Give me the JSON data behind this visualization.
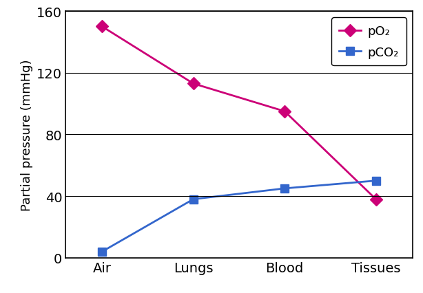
{
  "categories": [
    "Air",
    "Lungs",
    "Blood",
    "Tissues"
  ],
  "pO2": [
    150,
    113,
    95,
    38
  ],
  "pCO2": [
    4,
    38,
    45,
    50
  ],
  "pO2_color": "#CC0077",
  "pCO2_color": "#3366CC",
  "ylabel": "Partial pressure (mmHg)",
  "ylim": [
    0,
    160
  ],
  "yticks": [
    0,
    40,
    80,
    120,
    160
  ],
  "legend_pO2": "pO₂",
  "legend_pCO2": "pCO₂",
  "pO2_marker": "D",
  "pCO2_marker": "s",
  "linewidth": 2.0,
  "markersize": 9,
  "tick_fontsize": 14,
  "ylabel_fontsize": 13,
  "legend_fontsize": 13
}
